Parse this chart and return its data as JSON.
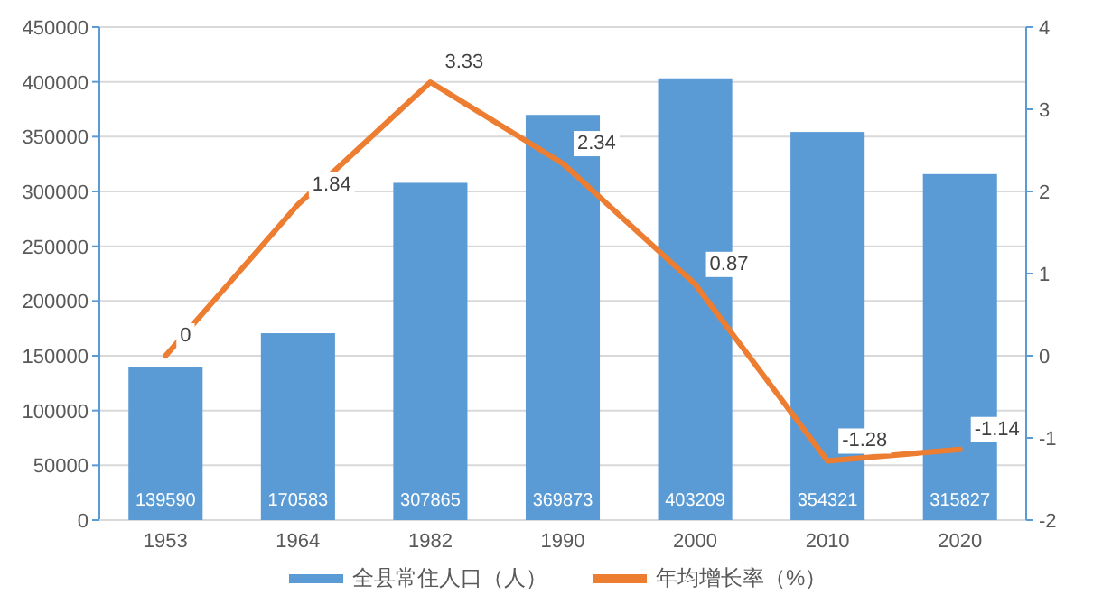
{
  "chart_data": {
    "type": "bar",
    "categories": [
      "1953",
      "1964",
      "1982",
      "1990",
      "2000",
      "2010",
      "2020"
    ],
    "series": [
      {
        "name": "全县常住人口（人）",
        "color": "#5b9bd5",
        "values": [
          139590,
          170583,
          307865,
          369873,
          403209,
          354321,
          315827
        ]
      },
      {
        "name": "年均增长率（%）",
        "type": "line",
        "axis": "y2",
        "color": "#ed7d31",
        "values": [
          0,
          1.84,
          3.33,
          2.34,
          0.87,
          -1.28,
          -1.14
        ]
      }
    ],
    "ylim": [
      0,
      450000
    ],
    "yticks": [
      0,
      50000,
      100000,
      150000,
      200000,
      250000,
      300000,
      350000,
      400000,
      450000
    ],
    "y2lim": [
      -2,
      4
    ],
    "y2ticks": [
      -2,
      -1,
      0,
      1,
      2,
      3,
      4
    ],
    "grid": "y",
    "legend": "bottom",
    "data_labels": true
  }
}
